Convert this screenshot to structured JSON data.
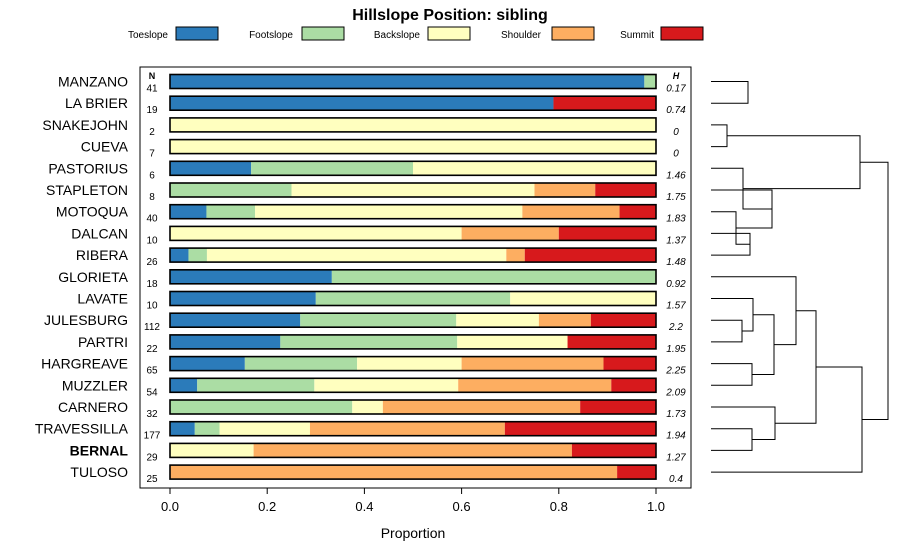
{
  "chart_data": {
    "type": "bar",
    "orientation": "horizontal",
    "stacked": true,
    "title": "Hillslope Position: sibling",
    "xlabel": "Proportion",
    "xlim": [
      0,
      1
    ],
    "x_ticks": [
      "0.0",
      "0.2",
      "0.4",
      "0.6",
      "0.8",
      "1.0"
    ],
    "n_header": "N",
    "h_header": "H",
    "legend_placement": "top",
    "legend": [
      {
        "name": "Toeslope",
        "color": "#2b7bba"
      },
      {
        "name": "Footslope",
        "color": "#abdda4"
      },
      {
        "name": "Backslope",
        "color": "#ffffbf"
      },
      {
        "name": "Shoulder",
        "color": "#fdae61"
      },
      {
        "name": "Summit",
        "color": "#d7191c"
      }
    ],
    "rows": [
      {
        "name": "MANZANO",
        "bold": false,
        "n": "41",
        "h": "0.17",
        "values": [
          0.976,
          0.024,
          0,
          0,
          0
        ]
      },
      {
        "name": "LA BRIER",
        "bold": false,
        "n": "19",
        "h": "0.74",
        "values": [
          0.789,
          0,
          0,
          0,
          0.211
        ]
      },
      {
        "name": "SNAKEJOHN",
        "bold": false,
        "n": "2",
        "h": "0",
        "values": [
          0,
          0,
          1,
          0,
          0
        ]
      },
      {
        "name": "CUEVA",
        "bold": false,
        "n": "7",
        "h": "0",
        "values": [
          0,
          0,
          1,
          0,
          0
        ]
      },
      {
        "name": "PASTORIUS",
        "bold": false,
        "n": "6",
        "h": "1.46",
        "values": [
          0.167,
          0.333,
          0.5,
          0,
          0
        ]
      },
      {
        "name": "STAPLETON",
        "bold": false,
        "n": "8",
        "h": "1.75",
        "values": [
          0,
          0.25,
          0.5,
          0.125,
          0.125
        ]
      },
      {
        "name": "MOTOQUA",
        "bold": false,
        "n": "40",
        "h": "1.83",
        "values": [
          0.075,
          0.1,
          0.55,
          0.2,
          0.075
        ]
      },
      {
        "name": "DALCAN",
        "bold": false,
        "n": "10",
        "h": "1.37",
        "values": [
          0,
          0,
          0.6,
          0.2,
          0.2
        ]
      },
      {
        "name": "RIBERA",
        "bold": false,
        "n": "26",
        "h": "1.48",
        "values": [
          0.038,
          0.038,
          0.616,
          0.038,
          0.27
        ]
      },
      {
        "name": "GLORIETA",
        "bold": false,
        "n": "18",
        "h": "0.92",
        "values": [
          0.333,
          0.667,
          0,
          0,
          0
        ]
      },
      {
        "name": "LAVATE",
        "bold": false,
        "n": "10",
        "h": "1.57",
        "values": [
          0.3,
          0.4,
          0.3,
          0,
          0
        ]
      },
      {
        "name": "JULESBURG",
        "bold": false,
        "n": "112",
        "h": "2.2",
        "values": [
          0.268,
          0.321,
          0.17,
          0.107,
          0.134
        ]
      },
      {
        "name": "PARTRI",
        "bold": false,
        "n": "22",
        "h": "1.95",
        "values": [
          0.227,
          0.364,
          0.227,
          0,
          0.182
        ]
      },
      {
        "name": "HARGREAVE",
        "bold": false,
        "n": "65",
        "h": "2.25",
        "values": [
          0.154,
          0.231,
          0.215,
          0.292,
          0.108
        ]
      },
      {
        "name": "MUZZLER",
        "bold": false,
        "n": "54",
        "h": "2.09",
        "values": [
          0.056,
          0.241,
          0.296,
          0.315,
          0.092
        ]
      },
      {
        "name": "CARNERO",
        "bold": false,
        "n": "32",
        "h": "1.73",
        "values": [
          0,
          0.375,
          0.063,
          0.406,
          0.156
        ]
      },
      {
        "name": "TRAVESSILLA",
        "bold": false,
        "n": "177",
        "h": "1.94",
        "values": [
          0.051,
          0.051,
          0.186,
          0.401,
          0.311
        ]
      },
      {
        "name": "BERNAL",
        "bold": true,
        "n": "29",
        "h": "1.27",
        "values": [
          0,
          0,
          0.172,
          0.655,
          0.173
        ]
      },
      {
        "name": "TULOSO",
        "bold": false,
        "n": "25",
        "h": "0.4",
        "values": [
          0,
          0,
          0,
          0.92,
          0.08
        ]
      }
    ]
  }
}
